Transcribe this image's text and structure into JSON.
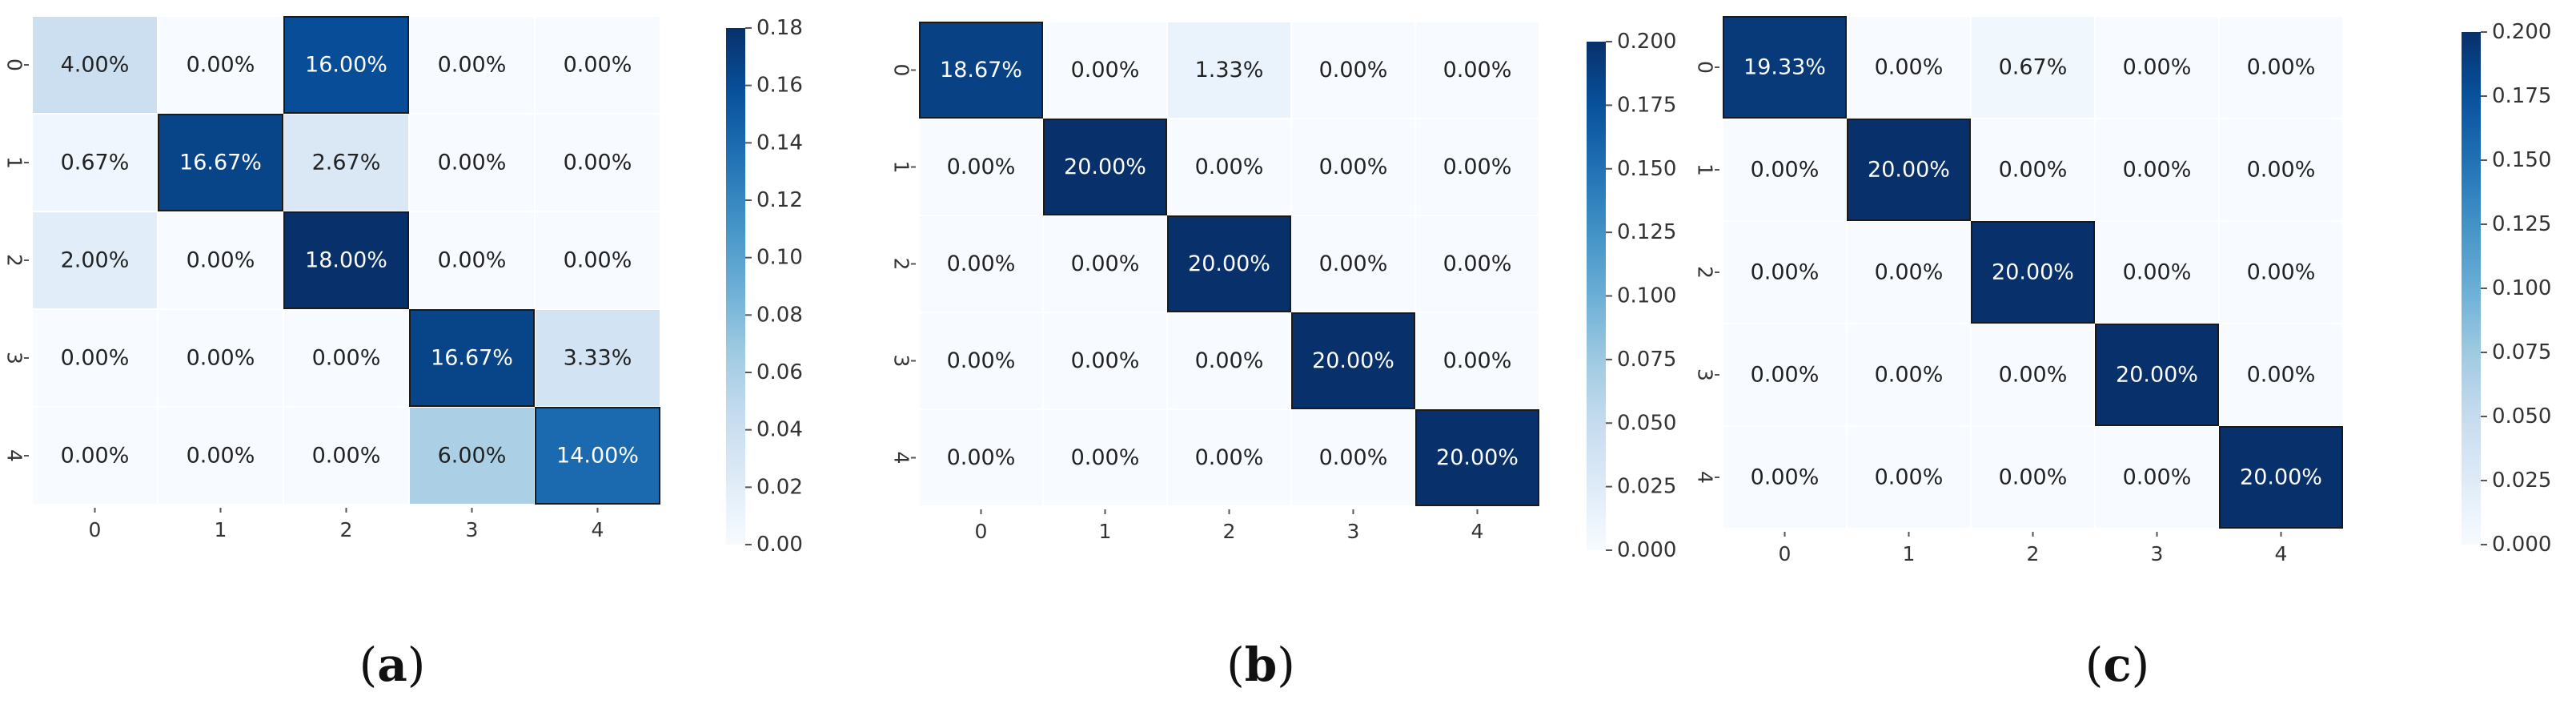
{
  "chart_data": [
    {
      "type": "heatmap",
      "panel_label": "a",
      "x_tick_labels": [
        "0",
        "1",
        "2",
        "3",
        "4"
      ],
      "y_tick_labels": [
        "0",
        "1",
        "2",
        "3",
        "4"
      ],
      "values": [
        [
          0.04,
          0.0,
          0.16,
          0.0,
          0.0
        ],
        [
          0.0067,
          0.1667,
          0.0267,
          0.0,
          0.0
        ],
        [
          0.02,
          0.0,
          0.18,
          0.0,
          0.0
        ],
        [
          0.0,
          0.0,
          0.0,
          0.1667,
          0.0333
        ],
        [
          0.0,
          0.0,
          0.0,
          0.06,
          0.14
        ]
      ],
      "annotations": [
        [
          "4.00%",
          "0.00%",
          "16.00%",
          "0.00%",
          "0.00%"
        ],
        [
          "0.67%",
          "16.67%",
          "2.67%",
          "0.00%",
          "0.00%"
        ],
        [
          "2.00%",
          "0.00%",
          "18.00%",
          "0.00%",
          "0.00%"
        ],
        [
          "0.00%",
          "0.00%",
          "0.00%",
          "16.67%",
          "3.33%"
        ],
        [
          "0.00%",
          "0.00%",
          "0.00%",
          "6.00%",
          "14.00%"
        ]
      ],
      "colorbar": {
        "range": [
          0.0,
          0.18
        ],
        "ticks": [
          0.0,
          0.02,
          0.04,
          0.06,
          0.08,
          0.1,
          0.12,
          0.14,
          0.16,
          0.18
        ],
        "tick_labels": [
          "0.00",
          "0.02",
          "0.04",
          "0.06",
          "0.08",
          "0.10",
          "0.12",
          "0.14",
          "0.16",
          "0.18"
        ]
      },
      "colormap": "Blues"
    },
    {
      "type": "heatmap",
      "panel_label": "b",
      "x_tick_labels": [
        "0",
        "1",
        "2",
        "3",
        "4"
      ],
      "y_tick_labels": [
        "0",
        "1",
        "2",
        "3",
        "4"
      ],
      "values": [
        [
          0.1867,
          0.0,
          0.0133,
          0.0,
          0.0
        ],
        [
          0.0,
          0.2,
          0.0,
          0.0,
          0.0
        ],
        [
          0.0,
          0.0,
          0.2,
          0.0,
          0.0
        ],
        [
          0.0,
          0.0,
          0.0,
          0.2,
          0.0
        ],
        [
          0.0,
          0.0,
          0.0,
          0.0,
          0.2
        ]
      ],
      "annotations": [
        [
          "18.67%",
          "0.00%",
          "1.33%",
          "0.00%",
          "0.00%"
        ],
        [
          "0.00%",
          "20.00%",
          "0.00%",
          "0.00%",
          "0.00%"
        ],
        [
          "0.00%",
          "0.00%",
          "20.00%",
          "0.00%",
          "0.00%"
        ],
        [
          "0.00%",
          "0.00%",
          "0.00%",
          "20.00%",
          "0.00%"
        ],
        [
          "0.00%",
          "0.00%",
          "0.00%",
          "0.00%",
          "20.00%"
        ]
      ],
      "colorbar": {
        "range": [
          0.0,
          0.2
        ],
        "ticks": [
          0.0,
          0.025,
          0.05,
          0.075,
          0.1,
          0.125,
          0.15,
          0.175,
          0.2
        ],
        "tick_labels": [
          "0.000",
          "0.025",
          "0.050",
          "0.075",
          "0.100",
          "0.125",
          "0.150",
          "0.175",
          "0.200"
        ]
      },
      "colormap": "Blues"
    },
    {
      "type": "heatmap",
      "panel_label": "c",
      "x_tick_labels": [
        "0",
        "1",
        "2",
        "3",
        "4"
      ],
      "y_tick_labels": [
        "0",
        "1",
        "2",
        "3",
        "4"
      ],
      "values": [
        [
          0.1933,
          0.0,
          0.0067,
          0.0,
          0.0
        ],
        [
          0.0,
          0.2,
          0.0,
          0.0,
          0.0
        ],
        [
          0.0,
          0.0,
          0.2,
          0.0,
          0.0
        ],
        [
          0.0,
          0.0,
          0.0,
          0.2,
          0.0
        ],
        [
          0.0,
          0.0,
          0.0,
          0.0,
          0.2
        ]
      ],
      "annotations": [
        [
          "19.33%",
          "0.00%",
          "0.67%",
          "0.00%",
          "0.00%"
        ],
        [
          "0.00%",
          "20.00%",
          "0.00%",
          "0.00%",
          "0.00%"
        ],
        [
          "0.00%",
          "0.00%",
          "20.00%",
          "0.00%",
          "0.00%"
        ],
        [
          "0.00%",
          "0.00%",
          "0.00%",
          "20.00%",
          "0.00%"
        ],
        [
          "0.00%",
          "0.00%",
          "0.00%",
          "0.00%",
          "20.00%"
        ]
      ],
      "colorbar": {
        "range": [
          0.0,
          0.2
        ],
        "ticks": [
          0.0,
          0.025,
          0.05,
          0.075,
          0.1,
          0.125,
          0.15,
          0.175,
          0.2
        ],
        "tick_labels": [
          "0.000",
          "0.025",
          "0.050",
          "0.075",
          "0.100",
          "0.125",
          "0.150",
          "0.175",
          "0.200"
        ]
      },
      "colormap": "Blues"
    }
  ]
}
